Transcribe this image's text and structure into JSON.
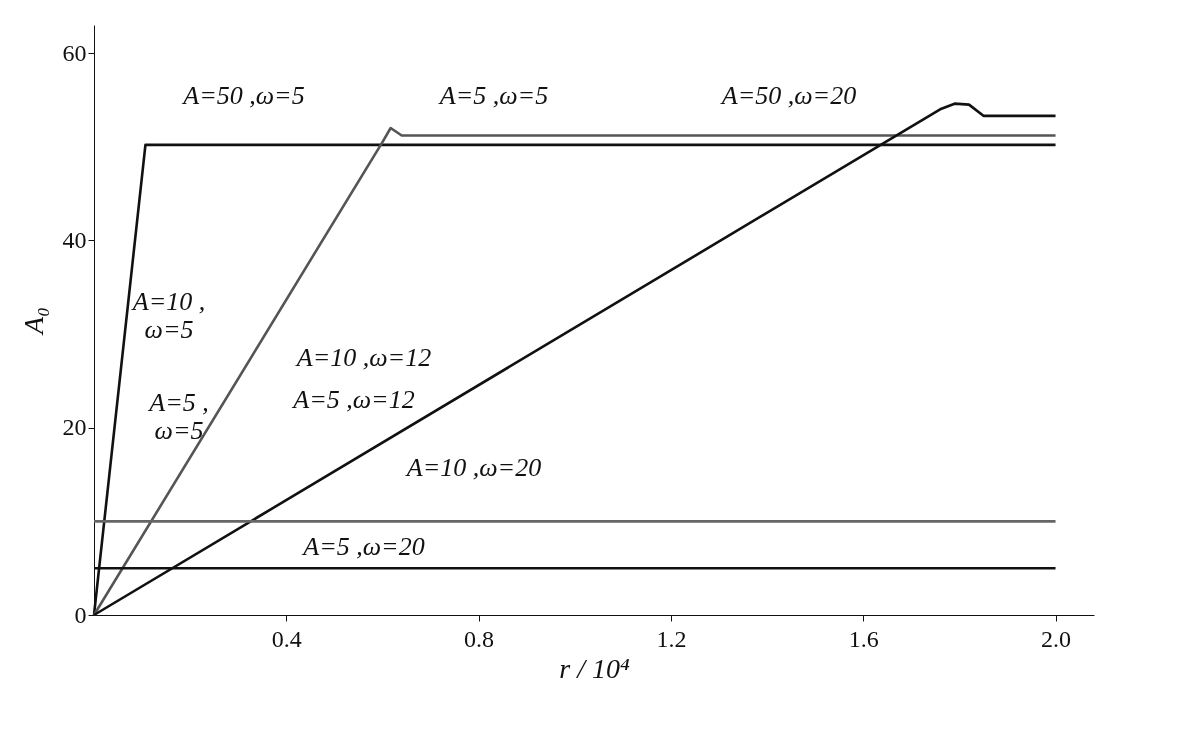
{
  "chart_data": {
    "type": "line",
    "xlabel": "r / 10⁴",
    "ylabel": "A₀",
    "xlim": [
      0,
      2.08
    ],
    "ylim": [
      0,
      63
    ],
    "xticks": [
      0.4,
      0.8,
      1.2,
      1.6,
      {
        "value": 2.0,
        "label": "2.0"
      }
    ],
    "yticks": [
      0,
      20,
      40,
      60
    ],
    "grid": false,
    "marker": "none",
    "line_style": "solid",
    "series": [
      {
        "color": "#111111",
        "x": [
          0,
          0.107,
          2.0
        ],
        "values": [
          0,
          50.2,
          50.2
        ]
      },
      {
        "color": "#555555",
        "x": [
          0,
          0.6,
          0.617,
          0.64,
          2.0
        ],
        "values": [
          0,
          50.5,
          52,
          51.2,
          51.2
        ]
      },
      {
        "color": "#111111",
        "x": [
          0,
          1.76,
          1.79,
          1.82,
          1.85,
          2.0
        ],
        "values": [
          0,
          54,
          54.6,
          54.5,
          53.3,
          53.3
        ]
      },
      {
        "color": "#666666",
        "x": [
          0,
          2.0
        ],
        "values": [
          10,
          10
        ]
      },
      {
        "color": "#111111",
        "x": [
          0,
          2.0
        ],
        "values": [
          5,
          5
        ]
      }
    ],
    "annotations": [
      "A=50 ,ω=5",
      "A=5 ,ω=5",
      "A=50 ,ω=20",
      "A=10 ,\nω=5",
      "A=5 ,\nω=5",
      "A=10 ,ω=12",
      "A=5 ,ω=12",
      "A=10 ,ω=20",
      "A=5 ,ω=20"
    ]
  }
}
